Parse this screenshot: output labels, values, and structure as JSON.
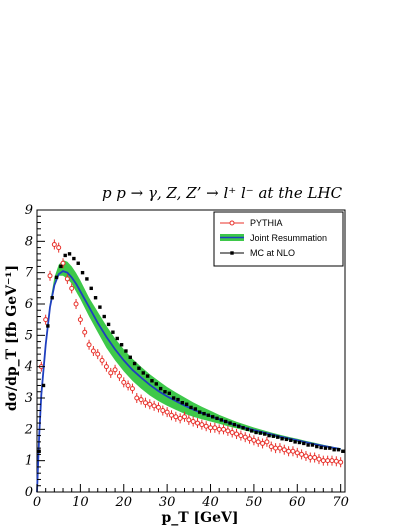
{
  "chart_data": {
    "type": "line",
    "title": "p p → γ, Z, Z’ → l⁺ l⁻ at the LHC",
    "xlabel": "p_T [GeV]",
    "ylabel": "dσ/dp_T [fb GeV⁻¹]",
    "xlim": [
      0,
      71
    ],
    "ylim": [
      0,
      9
    ],
    "xticks": [
      "0",
      "10",
      "20",
      "30",
      "40",
      "50",
      "60",
      "70"
    ],
    "yticks": [
      "0",
      "1",
      "2",
      "3",
      "4",
      "5",
      "6",
      "7",
      "8",
      "9"
    ],
    "legend_position": "top-right",
    "series": [
      {
        "name": "PYTHIA",
        "style": "red open circles with error bars",
        "color": "#e8302a",
        "x": [
          1,
          2,
          3,
          4,
          5,
          6,
          7,
          8,
          9,
          10,
          11,
          12,
          13,
          14,
          15,
          16,
          17,
          18,
          19,
          20,
          21,
          22,
          23,
          24,
          25,
          26,
          27,
          28,
          29,
          30,
          31,
          32,
          33,
          34,
          35,
          36,
          37,
          38,
          39,
          40,
          41,
          42,
          43,
          44,
          45,
          46,
          47,
          48,
          49,
          50,
          51,
          52,
          53,
          54,
          55,
          56,
          57,
          58,
          59,
          60,
          61,
          62,
          63,
          64,
          65,
          66,
          67,
          68,
          69,
          70
        ],
        "y": [
          4.0,
          5.5,
          6.9,
          7.9,
          7.8,
          7.3,
          6.8,
          6.5,
          6.0,
          5.5,
          5.1,
          4.7,
          4.5,
          4.4,
          4.2,
          4.0,
          3.8,
          3.9,
          3.7,
          3.5,
          3.4,
          3.3,
          3.0,
          2.95,
          2.85,
          2.8,
          2.75,
          2.7,
          2.6,
          2.55,
          2.45,
          2.4,
          2.35,
          2.4,
          2.3,
          2.25,
          2.2,
          2.15,
          2.1,
          2.05,
          2.05,
          2.0,
          2.0,
          1.95,
          1.9,
          1.85,
          1.8,
          1.75,
          1.7,
          1.65,
          1.6,
          1.55,
          1.6,
          1.45,
          1.4,
          1.4,
          1.35,
          1.3,
          1.3,
          1.25,
          1.2,
          1.15,
          1.1,
          1.1,
          1.05,
          1.0,
          1.0,
          1.0,
          0.98,
          0.95
        ]
      },
      {
        "name": "Joint Resummation",
        "style": "blue central line with green uncertainty band",
        "color": "#1f3fbf",
        "band_color": "#3ec84a",
        "x": [
          0,
          0.5,
          1,
          2,
          3,
          4,
          5,
          6,
          7,
          8,
          9,
          10,
          12,
          14,
          16,
          18,
          20,
          22,
          24,
          26,
          28,
          30,
          32,
          34,
          36,
          38,
          40,
          42,
          44,
          46,
          48,
          50,
          52,
          54,
          56,
          58,
          60,
          62,
          64,
          66,
          68,
          70
        ],
        "y": [
          0,
          1.8,
          3.1,
          4.7,
          5.9,
          6.6,
          6.95,
          7.05,
          7.0,
          6.85,
          6.65,
          6.4,
          5.9,
          5.4,
          4.95,
          4.55,
          4.2,
          3.9,
          3.65,
          3.42,
          3.22,
          3.05,
          2.9,
          2.76,
          2.63,
          2.52,
          2.42,
          2.32,
          2.22,
          2.13,
          2.05,
          1.98,
          1.91,
          1.84,
          1.77,
          1.71,
          1.65,
          1.59,
          1.53,
          1.47,
          1.42,
          1.37
        ],
        "band_low": [
          0,
          1.8,
          3.1,
          4.7,
          5.9,
          6.6,
          6.9,
          6.9,
          6.8,
          6.65,
          6.4,
          6.15,
          5.6,
          5.1,
          4.6,
          4.2,
          3.85,
          3.55,
          3.3,
          3.08,
          2.9,
          2.75,
          2.62,
          2.5,
          2.4,
          2.32,
          2.25,
          2.18,
          2.1,
          2.03,
          1.96,
          1.9,
          1.84,
          1.78,
          1.72,
          1.66,
          1.6,
          1.55,
          1.5,
          1.44,
          1.39,
          1.34
        ],
        "band_high": [
          0,
          1.8,
          3.1,
          4.75,
          6.05,
          6.85,
          7.25,
          7.4,
          7.35,
          7.2,
          7.0,
          6.75,
          6.2,
          5.75,
          5.3,
          4.9,
          4.55,
          4.25,
          4.0,
          3.76,
          3.55,
          3.35,
          3.18,
          3.02,
          2.86,
          2.72,
          2.59,
          2.46,
          2.35,
          2.24,
          2.15,
          2.06,
          1.98,
          1.9,
          1.83,
          1.76,
          1.7,
          1.63,
          1.57,
          1.51,
          1.45,
          1.4
        ]
      },
      {
        "name": "MC at NLO",
        "style": "black filled squares",
        "color": "#000000",
        "x": [
          0.5,
          1.5,
          2.5,
          3.5,
          4.5,
          5.5,
          6.5,
          7.5,
          8.5,
          9.5,
          10.5,
          11.5,
          12.5,
          13.5,
          14.5,
          15.5,
          16.5,
          17.5,
          18.5,
          19.5,
          20.5,
          21.5,
          22.5,
          23.5,
          24.5,
          25.5,
          26.5,
          27.5,
          28.5,
          29.5,
          30.5,
          31.5,
          32.5,
          33.5,
          34.5,
          35.5,
          36.5,
          37.5,
          38.5,
          39.5,
          40.5,
          41.5,
          42.5,
          43.5,
          44.5,
          45.5,
          46.5,
          47.5,
          48.5,
          49.5,
          50.5,
          51.5,
          52.5,
          53.5,
          54.5,
          55.5,
          56.5,
          57.5,
          58.5,
          59.5,
          60.5,
          61.5,
          62.5,
          63.5,
          64.5,
          65.5,
          66.5,
          67.5,
          68.5,
          69.5,
          70.5
        ],
        "y": [
          1.3,
          3.4,
          5.3,
          6.2,
          6.85,
          7.2,
          7.55,
          7.6,
          7.45,
          7.3,
          7.0,
          6.8,
          6.5,
          6.2,
          5.9,
          5.6,
          5.35,
          5.1,
          4.9,
          4.7,
          4.5,
          4.3,
          4.1,
          3.95,
          3.8,
          3.7,
          3.55,
          3.45,
          3.3,
          3.2,
          3.15,
          3.0,
          2.95,
          2.85,
          2.8,
          2.7,
          2.65,
          2.55,
          2.5,
          2.45,
          2.4,
          2.35,
          2.3,
          2.25,
          2.2,
          2.15,
          2.1,
          2.05,
          2.0,
          1.95,
          1.9,
          1.88,
          1.85,
          1.8,
          1.78,
          1.75,
          1.7,
          1.68,
          1.65,
          1.6,
          1.58,
          1.55,
          1.5,
          1.5,
          1.45,
          1.42,
          1.4,
          1.4,
          1.35,
          1.35,
          1.3
        ]
      }
    ]
  }
}
